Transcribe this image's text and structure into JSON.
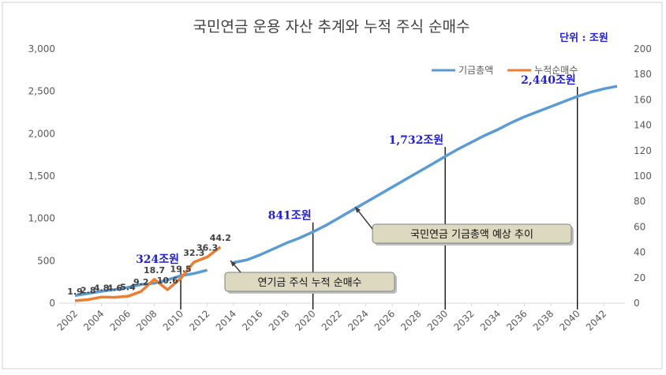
{
  "chart_data": {
    "type": "line",
    "title": "국민연금 운용 자산 추계와 누적 주식 순매수",
    "subtitle": "단위 : 조원",
    "x": [
      2002,
      2003,
      2004,
      2005,
      2006,
      2007,
      2008,
      2009,
      2010,
      2011,
      2012,
      2013,
      2014,
      2015,
      2016,
      2017,
      2018,
      2019,
      2020,
      2021,
      2022,
      2023,
      2024,
      2025,
      2026,
      2027,
      2028,
      2029,
      2030,
      2031,
      2032,
      2033,
      2034,
      2035,
      2036,
      2037,
      2038,
      2039,
      2040,
      2041,
      2042,
      2043
    ],
    "xlim": [
      2002,
      2043
    ],
    "xticks": [
      2002,
      2004,
      2006,
      2008,
      2010,
      2012,
      2014,
      2016,
      2018,
      2020,
      2022,
      2024,
      2026,
      2028,
      2030,
      2032,
      2034,
      2036,
      2038,
      2040,
      2042
    ],
    "ylim": [
      0,
      3000
    ],
    "yticks": [
      0,
      500,
      {
        "value": 1000,
        "label": "1,000"
      },
      {
        "value": 1500,
        "label": "1,500"
      },
      {
        "value": 2000,
        "label": "2,000"
      },
      {
        "value": 2500,
        "label": "2,500"
      },
      {
        "value": 3000,
        "label": "3,000"
      }
    ],
    "y2lim": [
      0,
      200
    ],
    "y2ticks": [
      0,
      20,
      40,
      60,
      80,
      100,
      120,
      140,
      160,
      180,
      200
    ],
    "legend": "top-right",
    "series": [
      {
        "name": "기금총액",
        "color": "#5b9bd5",
        "values": [
          90,
          115,
          140,
          160,
          185,
          220,
          235,
          275,
          324,
          350,
          390,
          null,
          480,
          510,
          570,
          640,
          710,
          770,
          841,
          920,
          1010,
          1100,
          1190,
          1280,
          1370,
          1460,
          1550,
          1640,
          1732,
          1820,
          1900,
          1980,
          2050,
          2130,
          2200,
          2260,
          2320,
          2380,
          2440,
          2490,
          2530,
          2560
        ]
      },
      {
        "name": "누적순매수",
        "color": "#ed7d31",
        "axis": "y2",
        "data_labels": true,
        "values": [
          1.9,
          2.8,
          4.8,
          4.6,
          5.4,
          9.2,
          18.7,
          10.6,
          19.5,
          32.3,
          36.3,
          44.2,
          null,
          null,
          null,
          null,
          null,
          null,
          null,
          null,
          null,
          null,
          null,
          null,
          null,
          null,
          null,
          null,
          null,
          null,
          null,
          null,
          null,
          null,
          null,
          null,
          null,
          null,
          null,
          null,
          null,
          null
        ]
      }
    ],
    "annotations": [
      {
        "text": "324조원",
        "x": 2010
      },
      {
        "text": "841조원",
        "x": 2020
      },
      {
        "text": "1,732조원",
        "x": 2030
      },
      {
        "text": "2,440조원",
        "x": 2040
      }
    ],
    "callouts": [
      "국민연금 기금총액 예상 추이",
      "연기금 주식 누적 순매수"
    ]
  }
}
